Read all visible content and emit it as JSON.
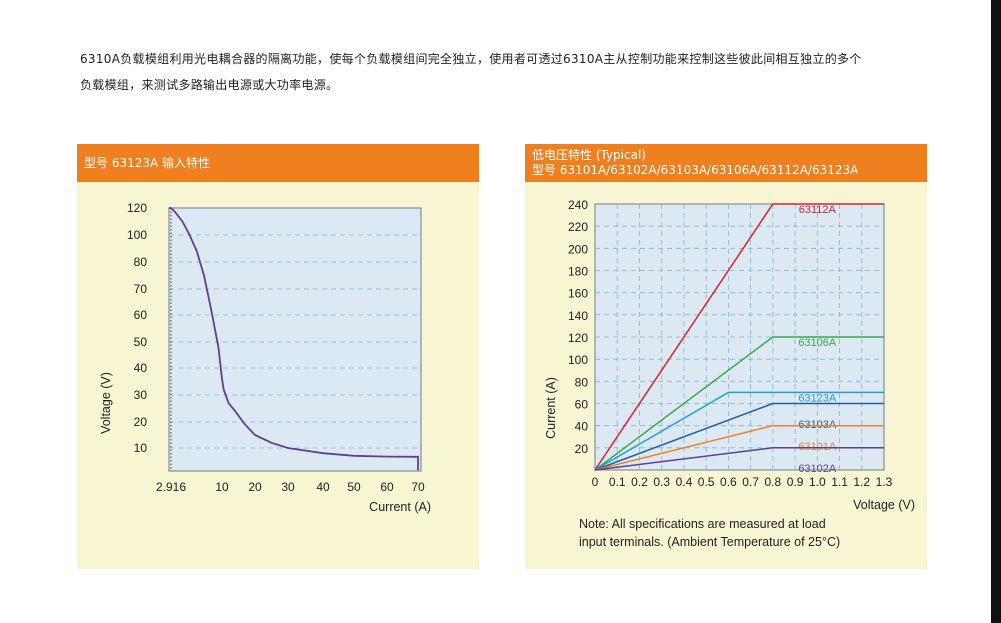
{
  "intro": {
    "line1": "6310A负载模组利用光电耦合器的隔离功能，使每个负载模组间完全独立，使用者可透过6310A主从控制功能来控制这些彼此间相互独立的多个",
    "line2": "负载模组，来测试多路输出电源或大功率电源。"
  },
  "left_panel": {
    "title": "型号 63123A 输入特性"
  },
  "right_panel": {
    "title_line1": "低电压特性 (Typical)",
    "title_line2": "型号 63101A/63102A/63103A/63106A/63112A/63123A",
    "note_line1": "Note: All specifications are measured at load",
    "note_line2": "input terminals. (Ambient Temperature of 25°C)"
  },
  "colors": {
    "header": "#f07f1f",
    "panel_bg": "#f8f6d2",
    "plot_bg": "#dde9f2",
    "grid": "#7fb3d6"
  },
  "chart_data": [
    {
      "type": "line",
      "title": "型号 63123A 输入特性",
      "xlabel": "Current (A)",
      "ylabel": "Voltage (V)",
      "x_ticks": [
        "2.916",
        "10",
        "20",
        "30",
        "40",
        "50",
        "60",
        "70"
      ],
      "y_ticks": [
        "120",
        "100",
        "80",
        "70",
        "60",
        "50",
        "40",
        "30",
        "20",
        "10"
      ],
      "marker_x": "2.916",
      "series": [
        {
          "name": "63123A",
          "color": "#5b3f99",
          "points": [
            [
              0,
              120
            ],
            [
              2.916,
              120
            ],
            [
              3.5,
              117
            ],
            [
              4.5,
              110
            ],
            [
              5.5,
              100
            ],
            [
              6.5,
              88
            ],
            [
              7.5,
              75
            ],
            [
              8.5,
              62
            ],
            [
              9.5,
              48
            ],
            [
              10,
              36
            ],
            [
              10.5,
              32
            ],
            [
              12,
              27
            ],
            [
              14,
              24
            ],
            [
              17,
              19
            ],
            [
              20,
              15
            ],
            [
              25,
              12
            ],
            [
              30,
              10
            ],
            [
              35,
              9
            ],
            [
              40,
              8
            ],
            [
              50,
              7
            ],
            [
              60,
              6.7
            ],
            [
              70,
              6.6
            ],
            [
              70,
              1.5
            ]
          ]
        }
      ]
    },
    {
      "type": "line",
      "title": "低电压特性 (Typical)",
      "xlabel": "Voltage (V)",
      "ylabel": "Current (A)",
      "x_ticks": [
        "0",
        "0.1",
        "0.2",
        "0.3",
        "0.4",
        "0.5",
        "0.6",
        "0.7",
        "0.8",
        "0.9",
        "1.0",
        "1.1",
        "1.2",
        "1.3"
      ],
      "y_ticks": [
        "240",
        "220",
        "200",
        "180",
        "160",
        "140",
        "120",
        "100",
        "80",
        "60",
        "40",
        "20"
      ],
      "xlim": [
        0,
        1.3
      ],
      "ylim": [
        0,
        240
      ],
      "series": [
        {
          "name": "63112A",
          "color": "#d9232d",
          "points": [
            [
              0,
              0
            ],
            [
              0.8,
              240
            ],
            [
              1.3,
              240
            ]
          ]
        },
        {
          "name": "63106A",
          "color": "#3aa84a",
          "points": [
            [
              0,
              0
            ],
            [
              0.8,
              120
            ],
            [
              1.3,
              120
            ]
          ]
        },
        {
          "name": "63123A",
          "color": "#1da0d8",
          "points": [
            [
              0,
              0
            ],
            [
              0.6,
              70
            ],
            [
              1.3,
              70
            ]
          ]
        },
        {
          "name": "63103A",
          "color": "#1f5fa6",
          "points": [
            [
              0,
              0
            ],
            [
              0.8,
              60
            ],
            [
              1.3,
              60
            ]
          ]
        },
        {
          "name": "63101A",
          "color": "#f07f1f",
          "points": [
            [
              0,
              0
            ],
            [
              0.8,
              40
            ],
            [
              1.3,
              40
            ]
          ]
        },
        {
          "name": "63102A",
          "color": "#5b3f99",
          "points": [
            [
              0,
              0
            ],
            [
              0.8,
              20
            ],
            [
              1.3,
              20
            ]
          ]
        }
      ]
    }
  ]
}
